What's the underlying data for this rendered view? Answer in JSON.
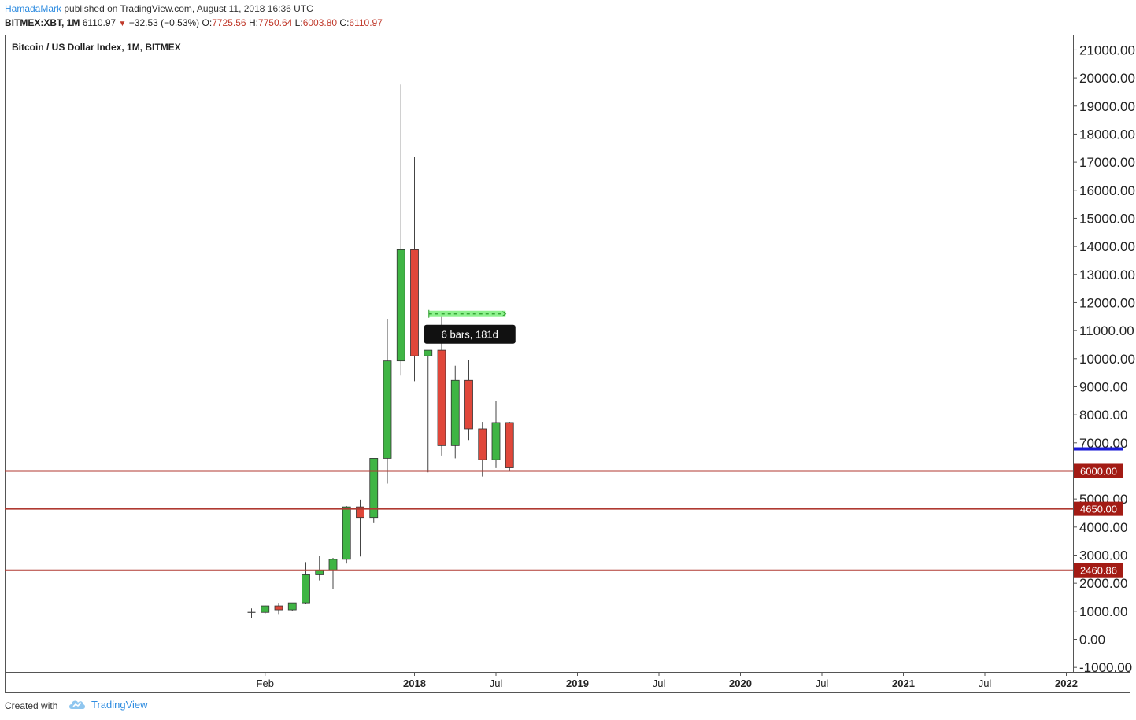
{
  "header": {
    "author": "HamadaMark",
    "published_text": "published on TradingView.com, August 11, 2018 16:36 UTC",
    "symbol": "BITMEX:XBT, 1M",
    "last": "6110.97",
    "change": "−32.53 (−0.53%)",
    "o_label": "O:",
    "o_value": "7725.56",
    "h_label": "H:",
    "h_value": "7750.64",
    "l_label": "L:",
    "l_value": "6003.80",
    "c_label": "C:",
    "c_value": "6110.97"
  },
  "footer": {
    "created_with": "Created with",
    "brand": "TradingView"
  },
  "colors": {
    "up": "#3fb544",
    "down": "#e0473a",
    "level_line": "#b03a32",
    "level_tag": "#a31b14",
    "range_fill": "#8ef28e",
    "tooltip_bg": "#111111",
    "axis_blue": "#1a1ad6"
  },
  "chart_data": {
    "type": "candlestick",
    "title": "Bitcoin / US Dollar Index, 1M, BITMEX",
    "y_axis_labels": [
      "21000.00",
      "20000.00",
      "19000.00",
      "18000.00",
      "17000.00",
      "16000.00",
      "15000.00",
      "14000.00",
      "13000.00",
      "12000.00",
      "11000.00",
      "10000.00",
      "9000.00",
      "8000.00",
      "7000.00",
      "5000.00",
      "4000.00",
      "3000.00",
      "2000.00",
      "1000.00",
      "0.00",
      "-1000.00"
    ],
    "y_axis_values": [
      21000,
      20000,
      19000,
      18000,
      17000,
      16000,
      15000,
      14000,
      13000,
      12000,
      11000,
      10000,
      9000,
      8000,
      7000,
      5000,
      4000,
      3000,
      2000,
      1000,
      0,
      -1000
    ],
    "ylim": [
      -1000,
      21000
    ],
    "x_axis_labels": [
      {
        "label": "Feb",
        "month": 1,
        "bold": false
      },
      {
        "label": "2018",
        "month": 12,
        "bold": true
      },
      {
        "label": "Jul",
        "month": 18,
        "bold": false
      },
      {
        "label": "2019",
        "month": 24,
        "bold": true
      },
      {
        "label": "Jul",
        "month": 30,
        "bold": false
      },
      {
        "label": "2020",
        "month": 36,
        "bold": true
      },
      {
        "label": "Jul",
        "month": 42,
        "bold": false
      },
      {
        "label": "2021",
        "month": 48,
        "bold": true
      },
      {
        "label": "Jul",
        "month": 54,
        "bold": false
      },
      {
        "label": "2022",
        "month": 60,
        "bold": true
      }
    ],
    "candles": [
      {
        "month": 0,
        "open": 960,
        "high": 1100,
        "low": 770,
        "close": 960
      },
      {
        "month": 1,
        "open": 960,
        "high": 1200,
        "low": 920,
        "close": 1190
      },
      {
        "month": 2,
        "open": 1190,
        "high": 1300,
        "low": 900,
        "close": 1050
      },
      {
        "month": 3,
        "open": 1050,
        "high": 1300,
        "low": 1010,
        "close": 1300
      },
      {
        "month": 4,
        "open": 1300,
        "high": 2750,
        "low": 1250,
        "close": 2300
      },
      {
        "month": 5,
        "open": 2300,
        "high": 2980,
        "low": 2100,
        "close": 2450
      },
      {
        "month": 6,
        "open": 2450,
        "high": 2900,
        "low": 1800,
        "close": 2850
      },
      {
        "month": 7,
        "open": 2850,
        "high": 4750,
        "low": 2700,
        "close": 4720
      },
      {
        "month": 8,
        "open": 4720,
        "high": 4980,
        "low": 2950,
        "close": 4340
      },
      {
        "month": 9,
        "open": 4340,
        "high": 6450,
        "low": 4140,
        "close": 6450
      },
      {
        "month": 10,
        "open": 6450,
        "high": 11400,
        "low": 5550,
        "close": 9920
      },
      {
        "month": 11,
        "open": 9920,
        "high": 19770,
        "low": 9400,
        "close": 13880
      },
      {
        "month": 12,
        "open": 13880,
        "high": 17200,
        "low": 9200,
        "close": 10100
      },
      {
        "month": 13,
        "open": 10100,
        "high": 10300,
        "low": 5950,
        "close": 10300
      },
      {
        "month": 14,
        "open": 10300,
        "high": 11600,
        "low": 6550,
        "close": 6900
      },
      {
        "month": 15,
        "open": 6900,
        "high": 9750,
        "low": 6450,
        "close": 9230
      },
      {
        "month": 16,
        "open": 9230,
        "high": 9950,
        "low": 7100,
        "close": 7500
      },
      {
        "month": 17,
        "open": 7500,
        "high": 7750,
        "low": 5800,
        "close": 6400
      },
      {
        "month": 18,
        "open": 6400,
        "high": 8500,
        "low": 6100,
        "close": 7725
      },
      {
        "month": 19,
        "open": 7725.56,
        "high": 7750.64,
        "low": 6003.8,
        "close": 6110.97
      }
    ],
    "levels": [
      {
        "value": 6000,
        "label": "6000.00"
      },
      {
        "value": 4650,
        "label": "4650.00"
      },
      {
        "value": 2460.86,
        "label": "2460.86"
      }
    ],
    "current_price": 6110.97,
    "date_range": {
      "start_month": 13,
      "end_month": 19,
      "value": 11600,
      "label": "6 bars, 181d"
    }
  }
}
